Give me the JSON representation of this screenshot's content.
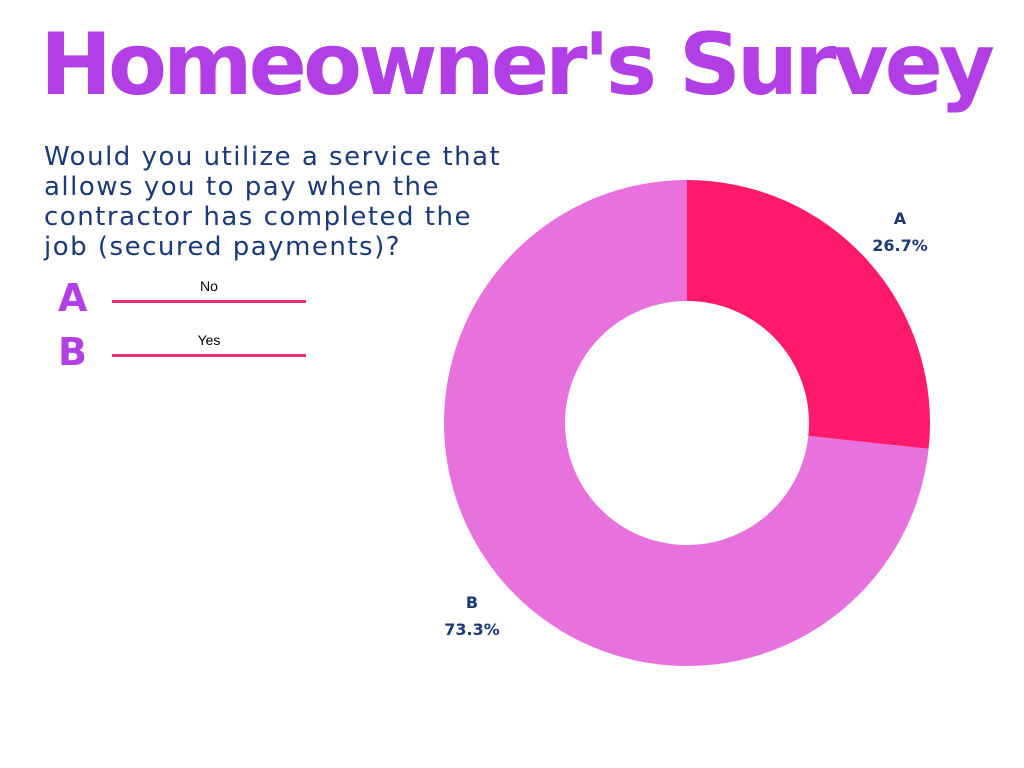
{
  "title": "Homeowner's Survey",
  "question": "Would you utilize a service that allows you to pay when the contractor has completed the job (secured payments)?",
  "legend": [
    {
      "letter": "A",
      "answer": "No"
    },
    {
      "letter": "B",
      "answer": "Yes"
    }
  ],
  "colors": {
    "title": "#b23fe6",
    "question": "#1b3a7a",
    "legend_letter": "#b23fe6",
    "legend_line": "#ee2a7b",
    "data_label": "#1b3a7a",
    "slice_A": "#ff1a6e",
    "slice_B": "#e872dd"
  },
  "chart_data": {
    "type": "pie",
    "donut": true,
    "categories": [
      "A",
      "B"
    ],
    "values": [
      26.7,
      73.3
    ],
    "labels": [
      "26.7%",
      "73.3%"
    ]
  }
}
